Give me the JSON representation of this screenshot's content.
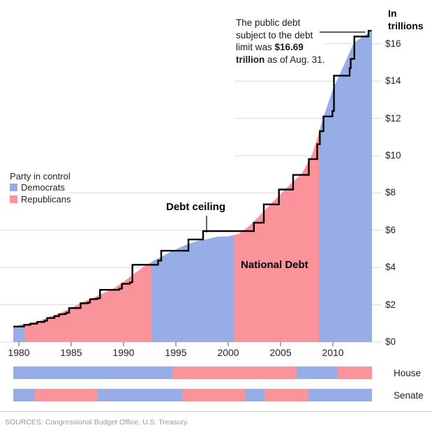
{
  "header": {
    "in_trillions": "In trillions"
  },
  "annotation": {
    "line1": "The public debt",
    "line2": "subject to the debt",
    "line3_pre": "limit was ",
    "line3_bold": "$16.69",
    "line4_bold": "trillion",
    "line4_post": " as of Aug. 31."
  },
  "legend": {
    "title": "Party in control",
    "democrats": "Democrats",
    "republicans": "Republicans"
  },
  "labels": {
    "debt_ceiling": "Debt ceiling",
    "national_debt": "National Debt",
    "house": "House",
    "senate": "Senate"
  },
  "sources": "SOURCES: Congressional Budget Office, U.S. Treasury.",
  "chart_data": {
    "type": "area",
    "title": "National debt vs. debt ceiling, colored by party in control",
    "xlim": [
      1979.47,
      2013.7
    ],
    "ylim": [
      0,
      17.2
    ],
    "x_ticks": [
      1980,
      1985,
      1990,
      1995,
      2000,
      2005,
      2010
    ],
    "y_ticks": [
      0,
      2,
      4,
      6,
      8,
      10,
      12,
      14,
      16
    ],
    "y_tick_prefix": "$",
    "y_axis_label": "In trillions",
    "grid": true,
    "series": [
      {
        "name": "National Debt",
        "type": "area",
        "x": [
          1979.5,
          1980,
          1981,
          1982,
          1983,
          1984,
          1985,
          1986,
          1987,
          1988,
          1989,
          1990,
          1991,
          1992,
          1993,
          1994,
          1995,
          1996,
          1997,
          1998,
          1999,
          2000,
          2001,
          2002,
          2003,
          2004,
          2005,
          2006,
          2007,
          2008,
          2009,
          2010,
          2011,
          2012,
          2013.67
        ],
        "y": [
          0.81,
          0.908,
          0.998,
          1.142,
          1.377,
          1.572,
          1.823,
          2.125,
          2.35,
          2.602,
          2.857,
          3.233,
          3.665,
          4.065,
          4.411,
          4.693,
          4.974,
          5.225,
          5.413,
          5.526,
          5.656,
          5.674,
          5.807,
          6.228,
          6.783,
          7.379,
          7.933,
          8.507,
          9.008,
          10.025,
          11.91,
          13.562,
          14.79,
          16.066,
          16.69
        ]
      },
      {
        "name": "Debt ceiling",
        "type": "step-line",
        "points": [
          [
            1979.47,
            0.83
          ],
          [
            1980.5,
            0.925
          ],
          [
            1981.1,
            0.985
          ],
          [
            1981.75,
            1.08
          ],
          [
            1982.45,
            1.143
          ],
          [
            1982.7,
            1.29
          ],
          [
            1983.4,
            1.389
          ],
          [
            1983.85,
            1.49
          ],
          [
            1984.4,
            1.52
          ],
          [
            1984.55,
            1.573
          ],
          [
            1984.8,
            1.824
          ],
          [
            1985.9,
            2.079
          ],
          [
            1986.6,
            2.111
          ],
          [
            1986.8,
            2.3
          ],
          [
            1987.4,
            2.32
          ],
          [
            1987.55,
            2.352
          ],
          [
            1987.75,
            2.8
          ],
          [
            1989.6,
            2.87
          ],
          [
            1989.85,
            3.123
          ],
          [
            1990.6,
            3.195
          ],
          [
            1990.8,
            3.23
          ],
          [
            1990.85,
            4.145
          ],
          [
            1993.3,
            4.37
          ],
          [
            1993.6,
            4.9
          ],
          [
            1996.2,
            5.5
          ],
          [
            1997.6,
            5.95
          ],
          [
            2002.45,
            6.4
          ],
          [
            2003.4,
            7.384
          ],
          [
            2004.85,
            8.184
          ],
          [
            2006.2,
            8.965
          ],
          [
            2007.7,
            9.815
          ],
          [
            2008.5,
            10.615
          ],
          [
            2008.75,
            11.315
          ],
          [
            2009.1,
            12.104
          ],
          [
            2009.95,
            12.394
          ],
          [
            2010.1,
            14.294
          ],
          [
            2011.6,
            14.694
          ],
          [
            2011.7,
            15.194
          ],
          [
            2012.05,
            16.394
          ],
          [
            2013.4,
            16.699
          ]
        ]
      }
    ],
    "annotation_value_trillions": 16.69,
    "annotation_as_of": "Aug. 31",
    "party_in_control": {
      "president_area_fill": [
        {
          "party": "democrats",
          "from": 1979.47,
          "to": 1980.6
        },
        {
          "party": "republicans",
          "from": 1980.6,
          "to": 1992.67
        },
        {
          "party": "democrats",
          "from": 1992.67,
          "to": 2000.6
        },
        {
          "party": "republicans",
          "from": 2000.6,
          "to": 2008.67
        },
        {
          "party": "democrats",
          "from": 2008.67,
          "to": 2013.7
        }
      ],
      "house": [
        {
          "party": "democrats",
          "from": 1979.47,
          "to": 1994.67
        },
        {
          "party": "republicans",
          "from": 1994.67,
          "to": 2006.53
        },
        {
          "party": "democrats",
          "from": 2006.53,
          "to": 2010.4
        },
        {
          "party": "republicans",
          "from": 2010.4,
          "to": 2013.7
        }
      ],
      "senate": [
        {
          "party": "democrats",
          "from": 1979.47,
          "to": 1981.53
        },
        {
          "party": "republicans",
          "from": 1981.53,
          "to": 1987.53
        },
        {
          "party": "democrats",
          "from": 1987.53,
          "to": 1995.6
        },
        {
          "party": "republicans",
          "from": 1995.6,
          "to": 2001.6
        },
        {
          "party": "democrats",
          "from": 2001.6,
          "to": 2003.47
        },
        {
          "party": "republicans",
          "from": 2003.47,
          "to": 2007.67
        },
        {
          "party": "democrats",
          "from": 2007.67,
          "to": 2013.7
        }
      ]
    },
    "colors": {
      "democrats": "#97ade6",
      "republicans": "#fb949a",
      "ceiling_line": "#000000",
      "grid": "#d9d9d9",
      "tick": "#555555"
    },
    "legend_position": "left-middle"
  }
}
